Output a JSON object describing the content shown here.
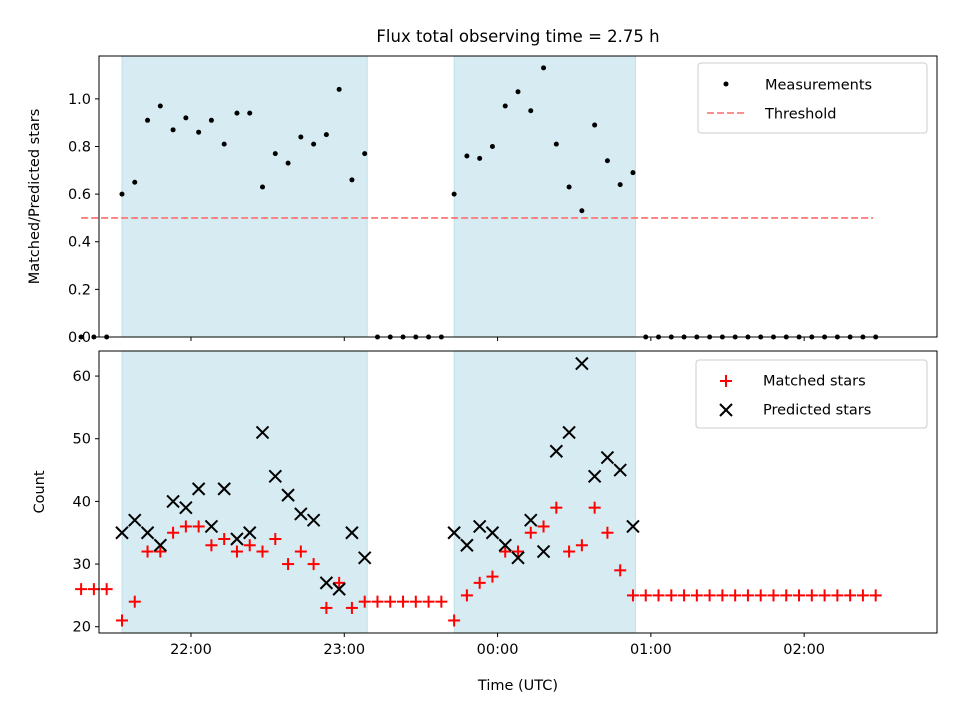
{
  "figure": {
    "title": "Flux total observing time = 2.75 h"
  },
  "colors": {
    "shade": "#add8e6",
    "threshold": "#ff7f7f",
    "measurement": "#000000",
    "matched": "#ff0000",
    "predicted": "#000000"
  },
  "chart_data": [
    {
      "type": "scatter",
      "ylabel": "Matched/Predicted stars",
      "xlabel": "",
      "xlim": [
        "21:24",
        "02:52"
      ],
      "ylim": [
        0,
        1.18
      ],
      "yticks": [
        "0.0",
        "0.2",
        "0.4",
        "0.6",
        "0.8",
        "1.0"
      ],
      "legend": {
        "placement": "upper right",
        "entries": [
          "Measurements",
          "Threshold"
        ]
      },
      "shaded_intervals": [
        [
          "21:33",
          "23:09"
        ],
        [
          "23:43",
          "00:54"
        ]
      ],
      "threshold": {
        "name": "Threshold",
        "y": 0.5,
        "x_range": [
          "21:17",
          "02:27"
        ]
      },
      "series": [
        {
          "name": "Measurements",
          "points": [
            [
              "21:17",
              0
            ],
            [
              "21:22",
              0
            ],
            [
              "21:27",
              0
            ],
            [
              "21:33",
              0.6
            ],
            [
              "21:38",
              0.65
            ],
            [
              "21:43",
              0.91
            ],
            [
              "21:48",
              0.97
            ],
            [
              "21:53",
              0.87
            ],
            [
              "21:58",
              0.92
            ],
            [
              "22:03",
              0.86
            ],
            [
              "22:08",
              0.91
            ],
            [
              "22:13",
              0.81
            ],
            [
              "22:18",
              0.94
            ],
            [
              "22:23",
              0.94
            ],
            [
              "22:28",
              0.63
            ],
            [
              "22:33",
              0.77
            ],
            [
              "22:38",
              0.73
            ],
            [
              "22:43",
              0.84
            ],
            [
              "22:48",
              0.81
            ],
            [
              "22:53",
              0.85
            ],
            [
              "22:58",
              1.04
            ],
            [
              "23:03",
              0.66
            ],
            [
              "23:08",
              0.77
            ],
            [
              "23:13",
              0
            ],
            [
              "23:18",
              0
            ],
            [
              "23:23",
              0
            ],
            [
              "23:28",
              0
            ],
            [
              "23:33",
              0
            ],
            [
              "23:38",
              0
            ],
            [
              "23:43",
              0.6
            ],
            [
              "23:48",
              0.76
            ],
            [
              "23:53",
              0.75
            ],
            [
              "23:58",
              0.8
            ],
            [
              "00:03",
              0.97
            ],
            [
              "00:08",
              1.03
            ],
            [
              "00:13",
              0.95
            ],
            [
              "00:18",
              1.13
            ],
            [
              "00:23",
              0.81
            ],
            [
              "00:28",
              0.63
            ],
            [
              "00:33",
              0.53
            ],
            [
              "00:38",
              0.89
            ],
            [
              "00:43",
              0.74
            ],
            [
              "00:48",
              0.64
            ],
            [
              "00:53",
              0.69
            ],
            [
              "00:58",
              0
            ],
            [
              "01:03",
              0
            ],
            [
              "01:08",
              0
            ],
            [
              "01:13",
              0
            ],
            [
              "01:18",
              0
            ],
            [
              "01:23",
              0
            ],
            [
              "01:28",
              0
            ],
            [
              "01:33",
              0
            ],
            [
              "01:38",
              0
            ],
            [
              "01:43",
              0
            ],
            [
              "01:48",
              0
            ],
            [
              "01:53",
              0
            ],
            [
              "01:58",
              0
            ],
            [
              "02:03",
              0
            ],
            [
              "02:08",
              0
            ],
            [
              "02:13",
              0
            ],
            [
              "02:18",
              0
            ],
            [
              "02:23",
              0
            ],
            [
              "02:28",
              0
            ]
          ]
        }
      ]
    },
    {
      "type": "scatter",
      "ylabel": "Count",
      "xlabel": "Time (UTC)",
      "xlim": [
        "21:24",
        "02:52"
      ],
      "ylim": [
        19,
        64
      ],
      "yticks": [
        "20",
        "30",
        "40",
        "50",
        "60"
      ],
      "xticks": [
        "22:00",
        "23:00",
        "00:00",
        "01:00",
        "02:00"
      ],
      "legend": {
        "placement": "upper right",
        "entries": [
          "Matched stars",
          "Predicted stars"
        ]
      },
      "shaded_intervals": [
        [
          "21:33",
          "23:09"
        ],
        [
          "23:43",
          "00:54"
        ]
      ],
      "series": [
        {
          "name": "Matched stars",
          "points": [
            [
              "21:17",
              26
            ],
            [
              "21:22",
              26
            ],
            [
              "21:27",
              26
            ],
            [
              "21:33",
              21
            ],
            [
              "21:38",
              24
            ],
            [
              "21:43",
              32
            ],
            [
              "21:48",
              32
            ],
            [
              "21:53",
              35
            ],
            [
              "21:58",
              36
            ],
            [
              "22:03",
              36
            ],
            [
              "22:08",
              33
            ],
            [
              "22:13",
              34
            ],
            [
              "22:18",
              32
            ],
            [
              "22:23",
              33
            ],
            [
              "22:28",
              32
            ],
            [
              "22:33",
              34
            ],
            [
              "22:38",
              30
            ],
            [
              "22:43",
              32
            ],
            [
              "22:48",
              30
            ],
            [
              "22:53",
              23
            ],
            [
              "22:58",
              27
            ],
            [
              "23:03",
              23
            ],
            [
              "23:08",
              24
            ],
            [
              "23:13",
              24
            ],
            [
              "23:18",
              24
            ],
            [
              "23:23",
              24
            ],
            [
              "23:28",
              24
            ],
            [
              "23:33",
              24
            ],
            [
              "23:38",
              24
            ],
            [
              "23:43",
              21
            ],
            [
              "23:48",
              25
            ],
            [
              "23:53",
              27
            ],
            [
              "23:58",
              28
            ],
            [
              "00:03",
              32
            ],
            [
              "00:08",
              32
            ],
            [
              "00:13",
              35
            ],
            [
              "00:18",
              36
            ],
            [
              "00:23",
              39
            ],
            [
              "00:28",
              32
            ],
            [
              "00:33",
              33
            ],
            [
              "00:38",
              39
            ],
            [
              "00:43",
              35
            ],
            [
              "00:48",
              29
            ],
            [
              "00:53",
              25
            ],
            [
              "00:58",
              25
            ],
            [
              "01:03",
              25
            ],
            [
              "01:08",
              25
            ],
            [
              "01:13",
              25
            ],
            [
              "01:18",
              25
            ],
            [
              "01:23",
              25
            ],
            [
              "01:28",
              25
            ],
            [
              "01:33",
              25
            ],
            [
              "01:38",
              25
            ],
            [
              "01:43",
              25
            ],
            [
              "01:48",
              25
            ],
            [
              "01:53",
              25
            ],
            [
              "01:58",
              25
            ],
            [
              "02:03",
              25
            ],
            [
              "02:08",
              25
            ],
            [
              "02:13",
              25
            ],
            [
              "02:18",
              25
            ],
            [
              "02:23",
              25
            ],
            [
              "02:28",
              25
            ]
          ]
        },
        {
          "name": "Predicted stars",
          "points": [
            [
              "21:33",
              35
            ],
            [
              "21:38",
              37
            ],
            [
              "21:43",
              35
            ],
            [
              "21:48",
              33
            ],
            [
              "21:53",
              40
            ],
            [
              "21:58",
              39
            ],
            [
              "22:03",
              42
            ],
            [
              "22:08",
              36
            ],
            [
              "22:13",
              42
            ],
            [
              "22:18",
              34
            ],
            [
              "22:23",
              35
            ],
            [
              "22:28",
              51
            ],
            [
              "22:33",
              44
            ],
            [
              "22:38",
              41
            ],
            [
              "22:43",
              38
            ],
            [
              "22:48",
              37
            ],
            [
              "22:53",
              27
            ],
            [
              "22:58",
              26
            ],
            [
              "23:03",
              35
            ],
            [
              "23:08",
              31
            ],
            [
              "23:43",
              35
            ],
            [
              "23:48",
              33
            ],
            [
              "23:53",
              36
            ],
            [
              "23:58",
              35
            ],
            [
              "00:03",
              33
            ],
            [
              "00:08",
              31
            ],
            [
              "00:13",
              37
            ],
            [
              "00:18",
              32
            ],
            [
              "00:23",
              48
            ],
            [
              "00:28",
              51
            ],
            [
              "00:33",
              62
            ],
            [
              "00:38",
              44
            ],
            [
              "00:43",
              47
            ],
            [
              "00:48",
              45
            ],
            [
              "00:53",
              36
            ]
          ]
        }
      ]
    }
  ]
}
